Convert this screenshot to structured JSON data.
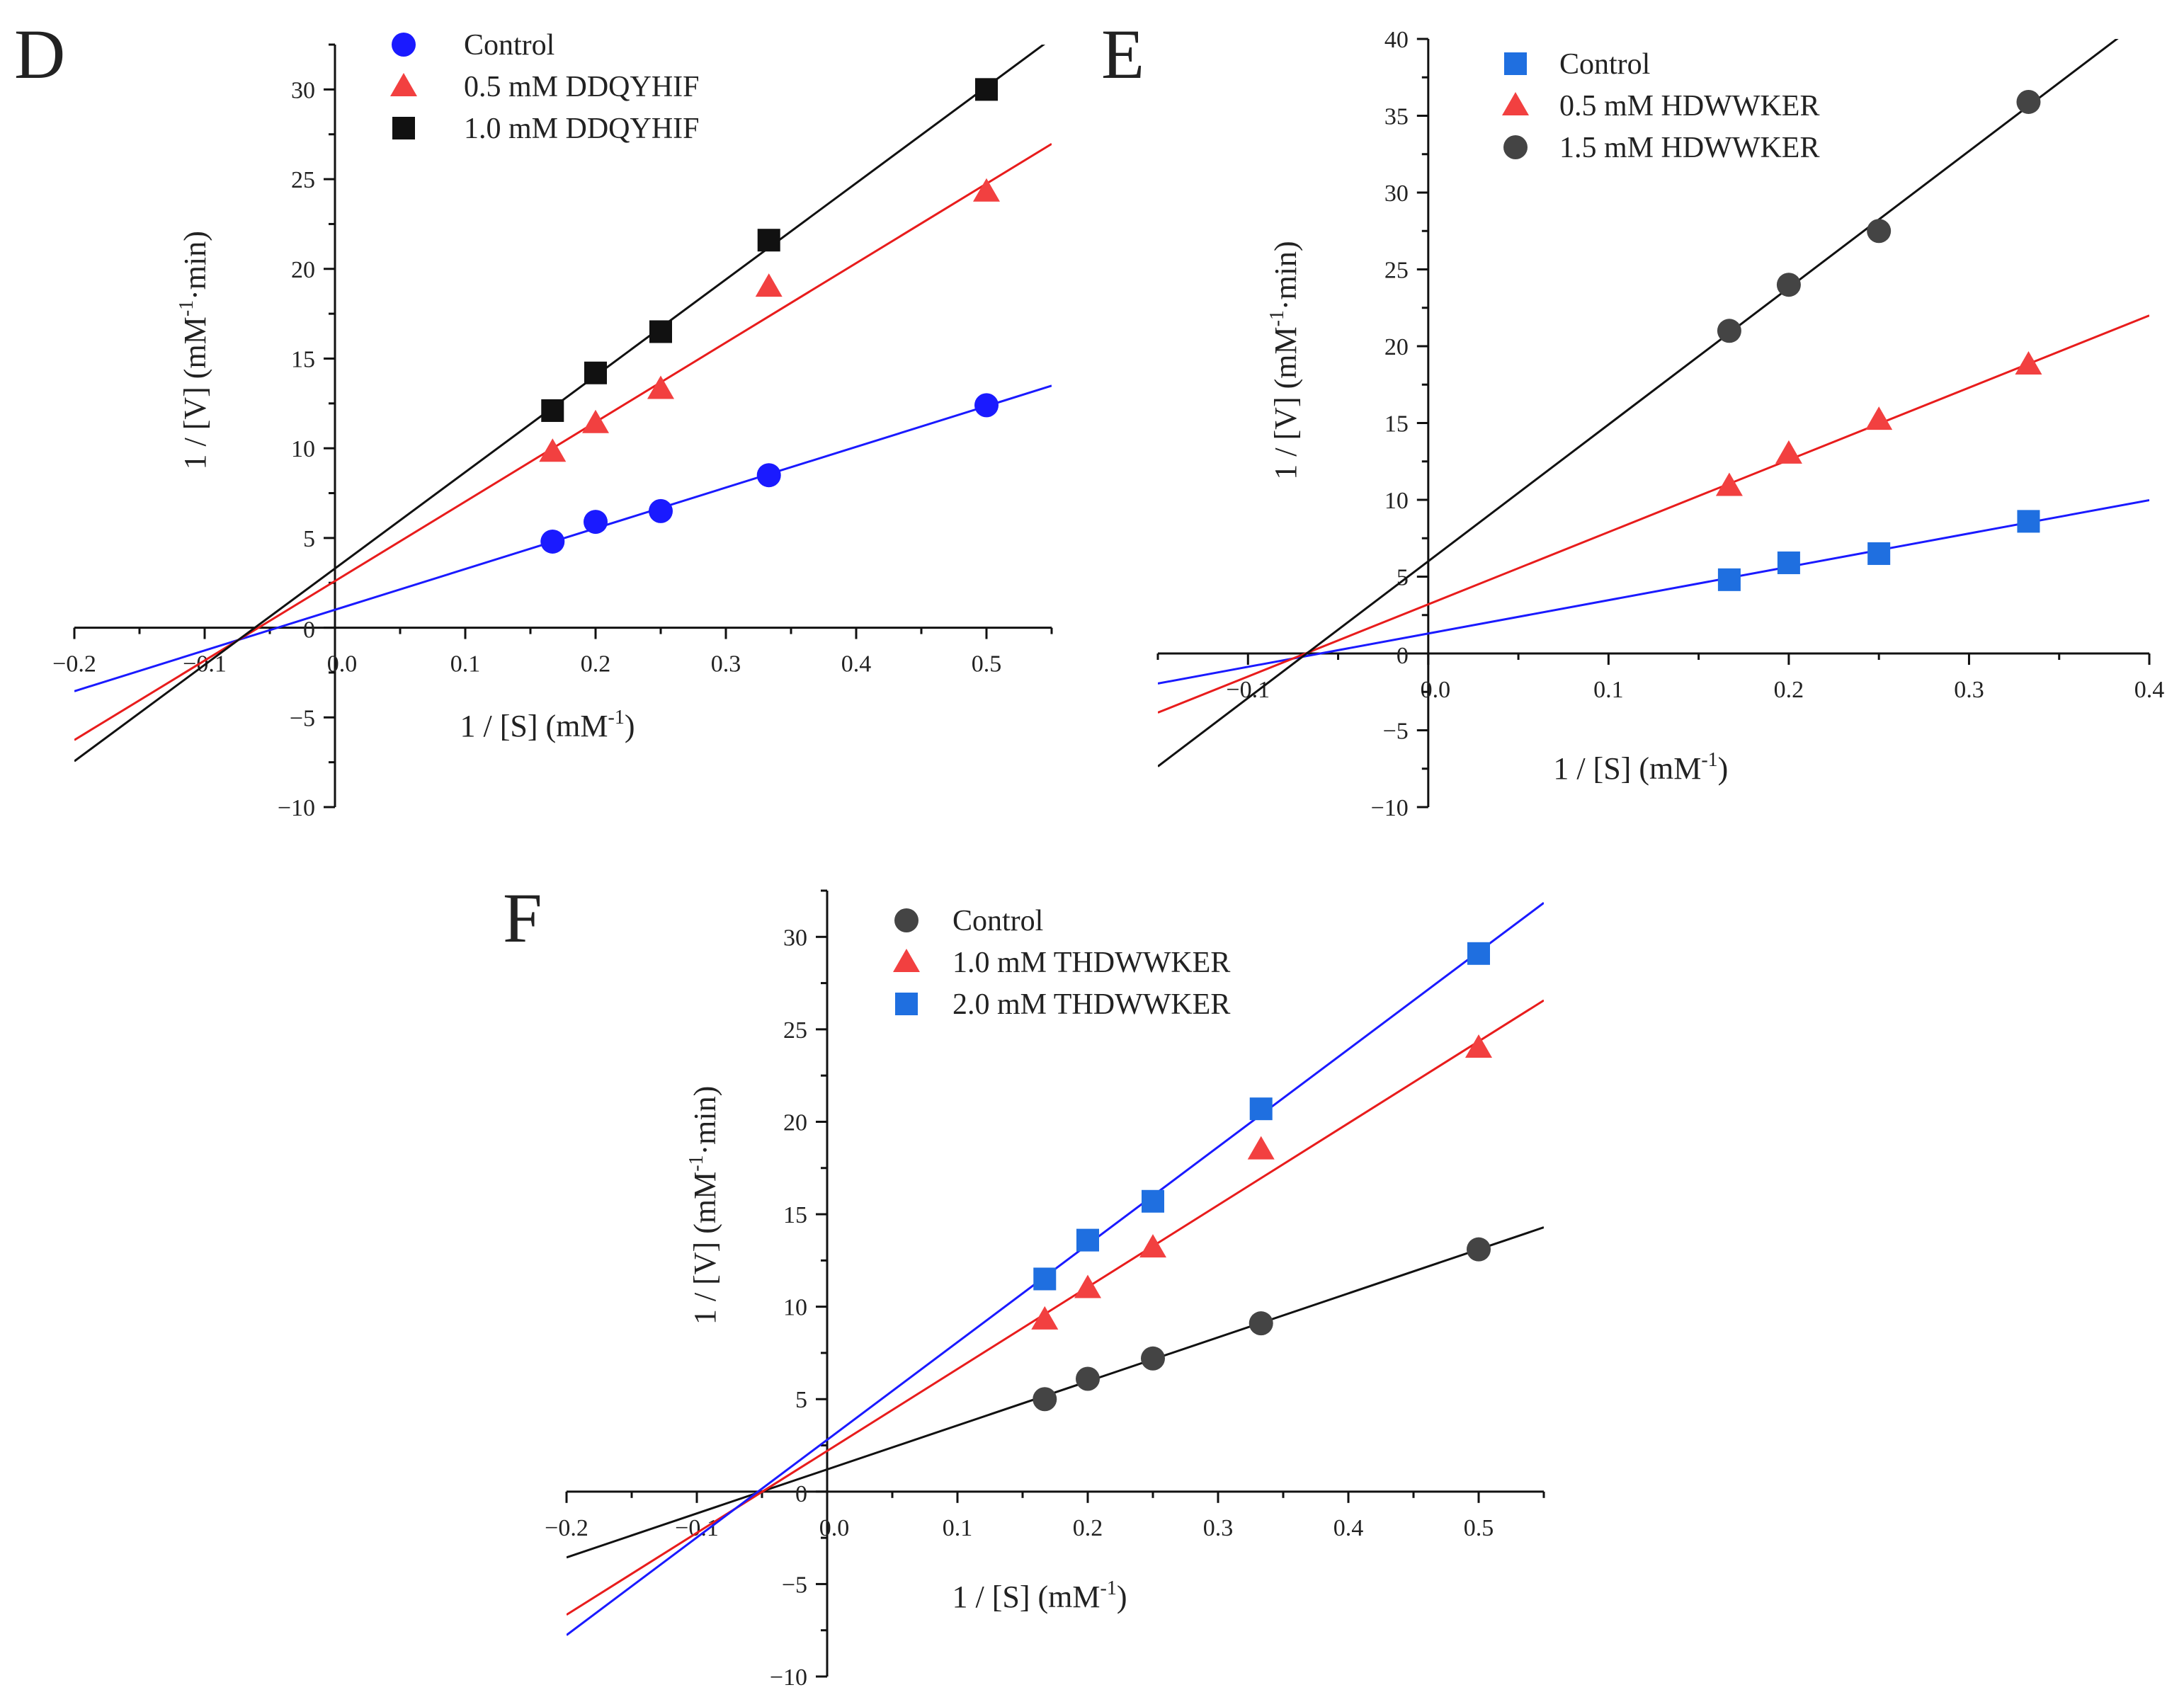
{
  "figure": {
    "panels": [
      "D",
      "E",
      "F"
    ]
  },
  "chart_data": [
    {
      "panel_label": "D",
      "type": "scatter",
      "subtype": "lineweaver-burk",
      "xlabel_main": "1 / [S] (mM",
      "xlabel_sup": "-1",
      "xlabel_tail": ")",
      "ylabel_main": "1 / [V] (mM",
      "ylabel_sup": "-1",
      "ylabel_tail": "·min)",
      "xlim": [
        -0.2,
        0.55
      ],
      "ylim": [
        -10,
        32.5
      ],
      "xticks": [
        -0.2,
        -0.1,
        0.0,
        0.1,
        0.2,
        0.3,
        0.4,
        0.5
      ],
      "yticks": [
        -10,
        -5,
        0,
        5,
        10,
        15,
        20,
        25,
        30
      ],
      "xtick_labels": [
        "−0.2",
        "−0.1",
        "0.0",
        "0.1",
        "0.2",
        "0.3",
        "0.4",
        "0.5"
      ],
      "ytick_labels": [
        "−10",
        "−5",
        "0",
        "5",
        "10",
        "15",
        "20",
        "25",
        "30"
      ],
      "legend_position": "top-left",
      "series": [
        {
          "name": "Control",
          "marker": "circle",
          "color": "#1a1aff",
          "line_color": "#1a1aff",
          "x": [
            0.167,
            0.2,
            0.25,
            0.333,
            0.5
          ],
          "y": [
            4.8,
            5.9,
            6.5,
            8.5,
            12.4
          ],
          "fit": {
            "slope": 22.7,
            "intercept": 1.0
          }
        },
        {
          "name": "0.5 mM  DDQYHIF",
          "marker": "triangle",
          "color": "#f24040",
          "line_color": "#e81c1c",
          "x": [
            0.167,
            0.2,
            0.25,
            0.333,
            0.5
          ],
          "y": [
            9.8,
            11.4,
            13.3,
            19.0,
            24.3
          ],
          "fit": {
            "slope": 44.3,
            "intercept": 2.6
          }
        },
        {
          "name": "1.0 mM  DDQYHIF",
          "marker": "square",
          "color": "#111111",
          "line_color": "#111111",
          "x": [
            0.167,
            0.2,
            0.25,
            0.333,
            0.5
          ],
          "y": [
            12.1,
            14.2,
            16.5,
            21.6,
            30.0
          ],
          "fit": {
            "slope": 53.7,
            "intercept": 3.3
          }
        }
      ]
    },
    {
      "panel_label": "E",
      "type": "scatter",
      "subtype": "lineweaver-burk",
      "xlabel_main": "1 / [S] (mM",
      "xlabel_sup": "-1",
      "xlabel_tail": ")",
      "ylabel_main": "1 / [V] (mM",
      "ylabel_sup": "-1",
      "ylabel_tail": "·min)",
      "xlim": [
        -0.15,
        0.4
      ],
      "ylim": [
        -10,
        40
      ],
      "xticks": [
        -0.1,
        0.0,
        0.1,
        0.2,
        0.3,
        0.4
      ],
      "yticks": [
        -10,
        -5,
        0,
        5,
        10,
        15,
        20,
        25,
        30,
        35,
        40
      ],
      "xtick_labels": [
        "−0.1",
        "0.0",
        "0.1",
        "0.2",
        "0.3",
        "0.4"
      ],
      "ytick_labels": [
        "−10",
        "−5",
        "0",
        "5",
        "10",
        "15",
        "20",
        "25",
        "30",
        "35",
        "40"
      ],
      "legend_position": "top-left",
      "series": [
        {
          "name": "Control",
          "marker": "square",
          "color": "#1f6fe0",
          "line_color": "#1a1aff",
          "x": [
            0.167,
            0.2,
            0.25,
            0.333
          ],
          "y": [
            4.8,
            5.9,
            6.5,
            8.6
          ],
          "fit": {
            "slope": 21.7,
            "intercept": 1.3
          }
        },
        {
          "name": "0.5 mM  HDWWKER",
          "marker": "triangle",
          "color": "#f24040",
          "line_color": "#e81c1c",
          "x": [
            0.167,
            0.2,
            0.25,
            0.333
          ],
          "y": [
            10.9,
            13.0,
            15.2,
            18.8
          ],
          "fit": {
            "slope": 47.0,
            "intercept": 3.2
          }
        },
        {
          "name": "1.5 mM  HDWWKER",
          "marker": "circle",
          "color": "#444444",
          "line_color": "#111111",
          "x": [
            0.167,
            0.2,
            0.25,
            0.333
          ],
          "y": [
            21.0,
            24.0,
            27.5,
            35.9
          ],
          "fit": {
            "slope": 89.0,
            "intercept": 6.0
          }
        }
      ]
    },
    {
      "panel_label": "F",
      "type": "scatter",
      "subtype": "lineweaver-burk",
      "xlabel_main": "1 / [S] (mM",
      "xlabel_sup": "-1",
      "xlabel_tail": ")",
      "ylabel_main": "1 / [V] (mM",
      "ylabel_sup": "-1",
      "ylabel_tail": "·min)",
      "xlim": [
        -0.2,
        0.55
      ],
      "ylim": [
        -10,
        32.5
      ],
      "xticks": [
        -0.2,
        -0.1,
        0.0,
        0.1,
        0.2,
        0.3,
        0.4,
        0.5
      ],
      "yticks": [
        -10,
        -5,
        0,
        5,
        10,
        15,
        20,
        25,
        30
      ],
      "xtick_labels": [
        "−0.2",
        "−0.1",
        "0.0",
        "0.1",
        "0.2",
        "0.3",
        "0.4",
        "0.5"
      ],
      "ytick_labels": [
        "−10",
        "−5",
        "0",
        "5",
        "10",
        "15",
        "20",
        "25",
        "30"
      ],
      "legend_position": "top-left",
      "series": [
        {
          "name": "Control",
          "marker": "circle",
          "color": "#444444",
          "line_color": "#111111",
          "x": [
            0.167,
            0.2,
            0.25,
            0.333,
            0.5
          ],
          "y": [
            5.0,
            6.1,
            7.2,
            9.1,
            13.1
          ],
          "fit": {
            "slope": 23.8,
            "intercept": 1.2
          }
        },
        {
          "name": "1.0 mM  THDWWKER",
          "marker": "triangle",
          "color": "#f24040",
          "line_color": "#e81c1c",
          "x": [
            0.167,
            0.2,
            0.25,
            0.333,
            0.5
          ],
          "y": [
            9.3,
            11.0,
            13.2,
            18.5,
            24.0
          ],
          "fit": {
            "slope": 44.3,
            "intercept": 2.2
          }
        },
        {
          "name": "2.0 mM  THDWWKER",
          "marker": "square",
          "color": "#1f6fe0",
          "line_color": "#1a1aff",
          "x": [
            0.167,
            0.2,
            0.25,
            0.333,
            0.5
          ],
          "y": [
            11.5,
            13.6,
            15.7,
            20.7,
            29.1
          ],
          "fit": {
            "slope": 52.8,
            "intercept": 2.8
          }
        }
      ]
    }
  ]
}
